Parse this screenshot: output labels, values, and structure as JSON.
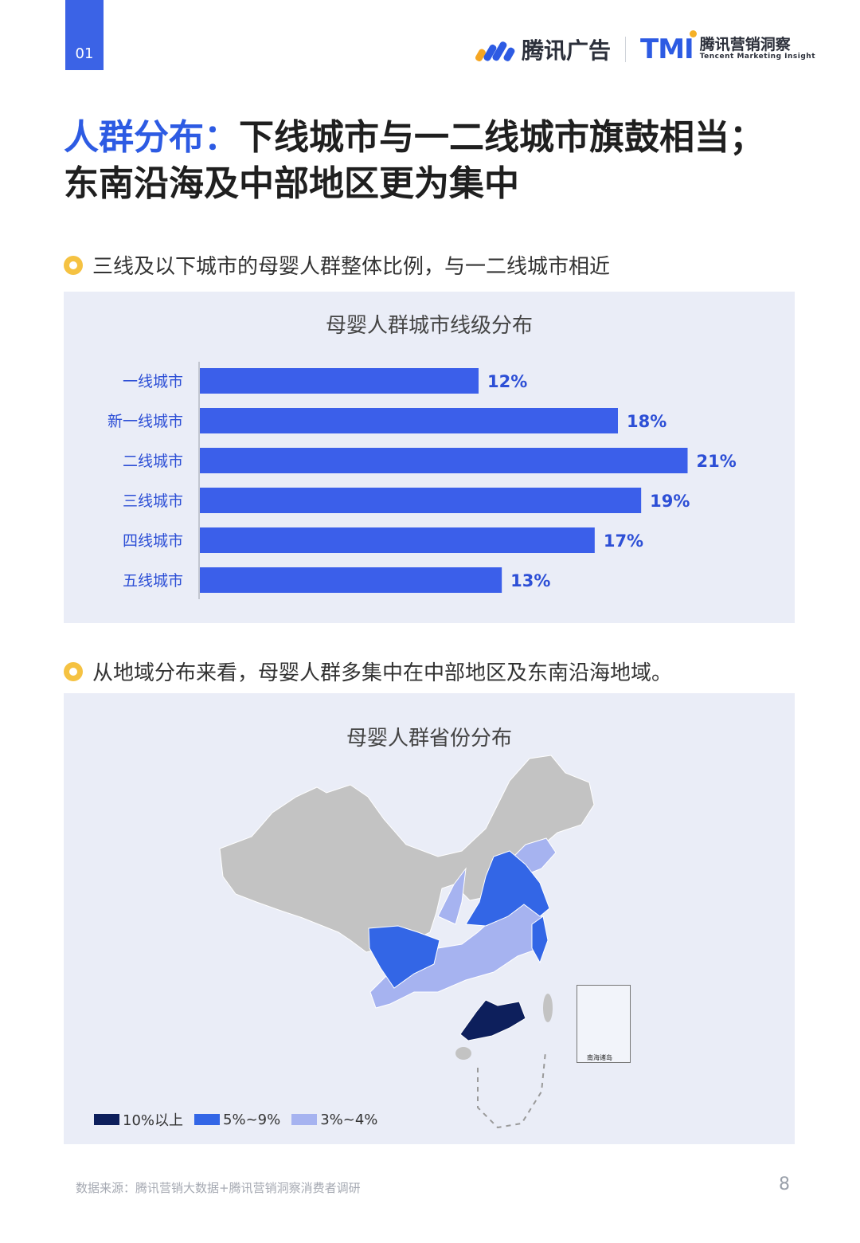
{
  "page_tab": "01",
  "brand": {
    "ad_name": "腾讯广告",
    "tmi_mark": "TMI",
    "tmi_cn": "腾讯营销洞察",
    "tmi_en": "Tencent Marketing Insight"
  },
  "title": {
    "highlight": "人群分布：",
    "line1_rest": "下线城市与一二线城市旗鼓相当；",
    "line2": "东南沿海及中部地区更为集中"
  },
  "bullet1": "三线及以下城市的母婴人群整体比例，与一二线城市相近",
  "bullet2": "从地域分布来看，母婴人群多集中在中部地区及东南沿海地域。",
  "chart_data": [
    {
      "type": "bar",
      "orientation": "horizontal",
      "title": "母婴人群城市线级分布",
      "categories": [
        "一线城市",
        "新一线城市",
        "二线城市",
        "三线城市",
        "四线城市",
        "五线城市"
      ],
      "values": [
        12,
        18,
        21,
        19,
        17,
        13
      ],
      "labels": [
        "12%",
        "18%",
        "21%",
        "19%",
        "17%",
        "13%"
      ],
      "unit": "%",
      "xlim": [
        0,
        24
      ],
      "bar_color": "#3b5fea",
      "label_color": "#2d4fd6",
      "grid": false
    }
  ],
  "map": {
    "title": "母婴人群省份分布",
    "inset_caption": "南海诸岛",
    "legend": [
      {
        "label": "10%以上",
        "color": "#0d1f5c"
      },
      {
        "label": "5%~9%",
        "color": "#3366e6"
      },
      {
        "label": "3%~4%",
        "color": "#a6b3f0"
      }
    ],
    "base_color": "#c3c3c3"
  },
  "footer": {
    "source": "数据来源：腾讯营销大数据+腾讯营销洞察消费者调研",
    "page": "8"
  }
}
